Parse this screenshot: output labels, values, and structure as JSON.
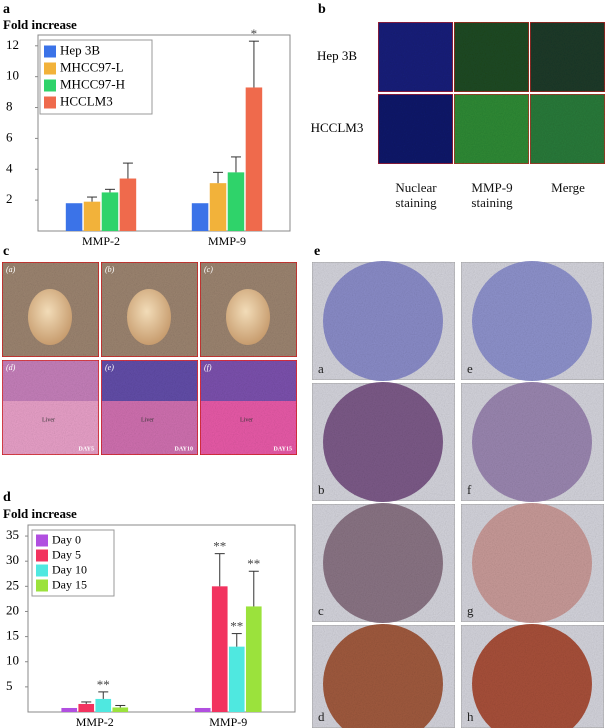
{
  "chart_data": [
    {
      "type": "bar",
      "panel": "a",
      "y_label": "Fold increase",
      "categories": [
        "MMP-2",
        "MMP-9"
      ],
      "series": [
        {
          "name": "Hep 3B",
          "color": "#3b73e8",
          "values": [
            1.8,
            1.8
          ],
          "errors": [
            null,
            null
          ],
          "annotations": [
            null,
            null
          ]
        },
        {
          "name": "MHCC97-L",
          "color": "#f2b23a",
          "values": [
            1.9,
            3.1
          ],
          "errors": [
            0.3,
            0.7
          ],
          "annotations": [
            null,
            null
          ]
        },
        {
          "name": "MHCC97-H",
          "color": "#2fd36a",
          "values": [
            2.5,
            3.8
          ],
          "errors": [
            0.2,
            1.0
          ],
          "annotations": [
            null,
            null
          ]
        },
        {
          "name": "HCCLM3",
          "color": "#ef6a4c",
          "values": [
            3.4,
            9.3
          ],
          "errors": [
            1.0,
            3.0
          ],
          "annotations": [
            null,
            "*"
          ]
        }
      ],
      "ylim": [
        0,
        12.7
      ],
      "yticks": [
        2,
        4,
        6,
        8,
        10,
        12
      ],
      "legend": "upper left",
      "grid": false
    },
    {
      "type": "bar",
      "panel": "d",
      "y_label": "Fold increase",
      "categories": [
        "MMP-2",
        "MMP-9"
      ],
      "series": [
        {
          "name": "Day 0",
          "color": "#b14fe0",
          "values": [
            0.8,
            0.8
          ],
          "errors": [
            null,
            null
          ],
          "annotations": [
            null,
            null
          ]
        },
        {
          "name": "Day 5",
          "color": "#f2335f",
          "values": [
            1.6,
            25
          ],
          "errors": [
            0.4,
            6.5
          ],
          "annotations": [
            null,
            "**"
          ]
        },
        {
          "name": "Day 10",
          "color": "#4fe8e0",
          "values": [
            2.6,
            13
          ],
          "errors": [
            1.4,
            2.6
          ],
          "annotations": [
            "**",
            "**"
          ]
        },
        {
          "name": "Day 15",
          "color": "#9be23c",
          "values": [
            0.9,
            21
          ],
          "errors": [
            0.4,
            7
          ],
          "annotations": [
            null,
            "**"
          ]
        }
      ],
      "ylim": [
        0,
        37.2
      ],
      "yticks": [
        5,
        10,
        15,
        20,
        25,
        30,
        35
      ],
      "legend": "upper left",
      "grid": false
    }
  ],
  "panel_b": {
    "letter": "b",
    "rows": [
      "Hep 3B",
      "HCCLM3"
    ],
    "columns": [
      "Nuclear staining",
      "MMP-9 staining",
      "Merge"
    ]
  },
  "panel_c": {
    "letter": "c",
    "images": [
      {
        "label": "(a)"
      },
      {
        "label": "(b)"
      },
      {
        "label": "(c)"
      },
      {
        "label": "(d)",
        "tissue": "Liver",
        "day": "DAY5"
      },
      {
        "label": "(e)",
        "tissue": "Liver",
        "day": "DAY10"
      },
      {
        "label": "(f)",
        "tissue": "Liver",
        "day": "DAY15"
      }
    ]
  },
  "panel_e": {
    "letter": "e",
    "images": [
      "a",
      "e",
      "b",
      "f",
      "c",
      "g",
      "d",
      "h"
    ]
  }
}
